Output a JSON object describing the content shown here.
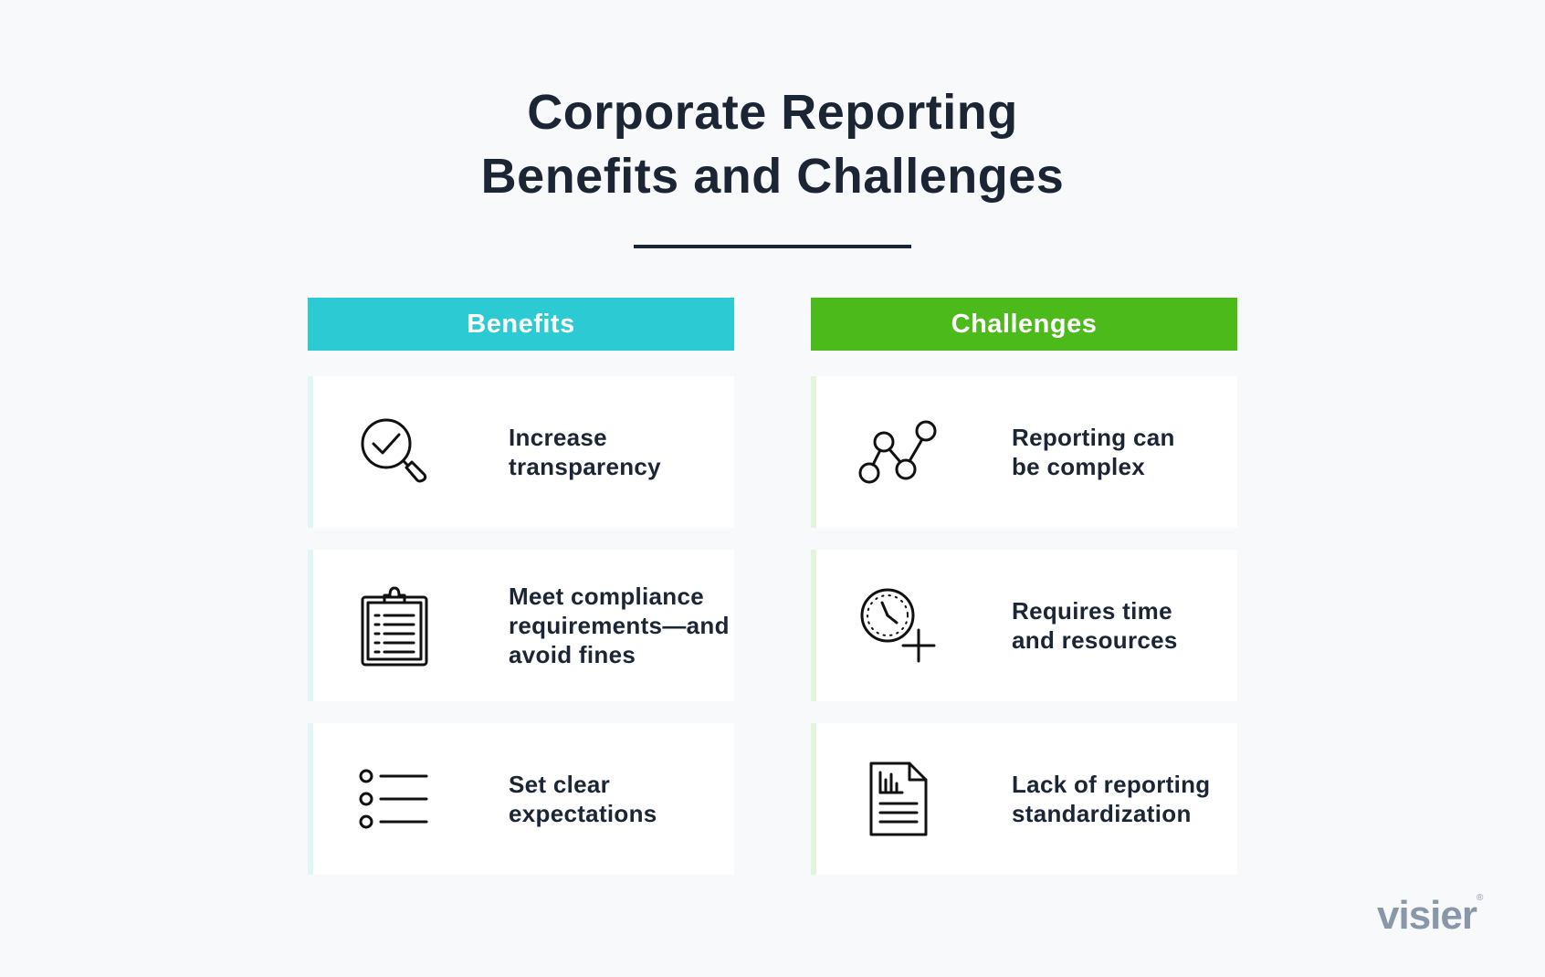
{
  "title": {
    "line1": "Corporate Reporting",
    "line2": "Benefits and Challenges"
  },
  "colors": {
    "title": "#1c2534",
    "benefits_header": "#2ccbd3",
    "benefits_accent": "#e2f6f7",
    "challenges_header": "#4cba1a",
    "challenges_accent": "#e3f3dc",
    "logo": "#8a97a8"
  },
  "benefits": {
    "header": "Benefits",
    "items": [
      {
        "icon": "magnifier-check-icon",
        "text": "Increase\ntransparency"
      },
      {
        "icon": "clipboard-list-icon",
        "text": "Meet compliance\nrequirements—and\navoid fines"
      },
      {
        "icon": "bullet-list-icon",
        "text": "Set clear\nexpectations"
      }
    ]
  },
  "challenges": {
    "header": "Challenges",
    "items": [
      {
        "icon": "node-network-icon",
        "text": "Reporting can\nbe complex"
      },
      {
        "icon": "clock-plus-icon",
        "text": "Requires time\nand resources"
      },
      {
        "icon": "document-chart-icon",
        "text": "Lack of reporting\nstandardization"
      }
    ]
  },
  "logo": {
    "text": "visier",
    "mark": "®"
  }
}
